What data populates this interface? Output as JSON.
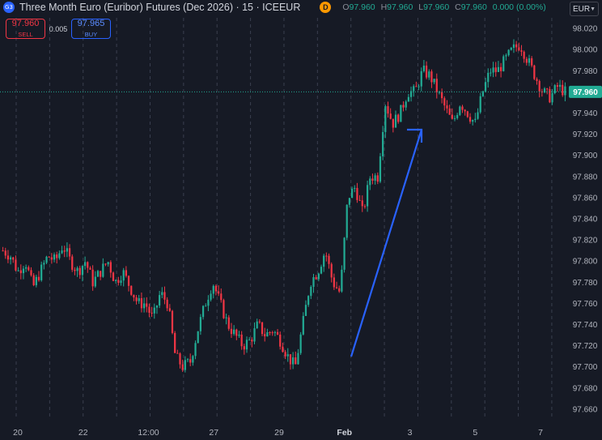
{
  "header": {
    "symbol_icon": "G3",
    "title": "Three Month Euro (Euribor) Futures (Dec 2026) · 15 · ICEEUR",
    "flag_letter": "D",
    "ohlc": {
      "o_label": "O",
      "o": "97.960",
      "h_label": "H",
      "h": "97.960",
      "l_label": "L",
      "l": "97.960",
      "c_label": "C",
      "c": "97.960",
      "change": "0.000 (0.00%)"
    }
  },
  "trade": {
    "sell_price": "97.960",
    "sell_label": "SELL",
    "spread": "0.005",
    "buy_price": "97.965",
    "buy_label": "BUY"
  },
  "currency": "EUR",
  "colors": {
    "background": "#161a25",
    "up": "#22ab94",
    "down": "#f23645",
    "arrow": "#2962ff",
    "price_line": "#22ab94",
    "grid": "#3a3f4f"
  },
  "chart_data": {
    "type": "candlestick",
    "ylim": [
      97.65,
      98.03
    ],
    "y_ticks": [
      "98.020",
      "98.000",
      "97.980",
      "97.960",
      "97.940",
      "97.920",
      "97.900",
      "97.880",
      "97.860",
      "97.840",
      "97.820",
      "97.800",
      "97.780",
      "97.760",
      "97.740",
      "97.720",
      "97.700",
      "97.680",
      "97.660"
    ],
    "x_ticks": [
      "20",
      "22",
      "12:00",
      "27",
      "29",
      "Feb",
      "3",
      "5",
      "7"
    ],
    "session_dividers": 17,
    "last_price": "97.960",
    "price_path": [
      97.81,
      97.805,
      97.79,
      97.8,
      97.775,
      97.79,
      97.805,
      97.8,
      97.815,
      97.8,
      97.79,
      97.8,
      97.78,
      97.79,
      97.8,
      97.78,
      97.79,
      97.775,
      97.76,
      97.76,
      97.745,
      97.77,
      97.76,
      97.71,
      97.7,
      97.705,
      97.735,
      97.76,
      97.78,
      97.76,
      97.74,
      97.73,
      97.72,
      97.725,
      97.74,
      97.73,
      97.735,
      97.725,
      97.71,
      97.7,
      97.74,
      97.78,
      97.79,
      97.81,
      97.78,
      97.77,
      97.86,
      97.87,
      97.845,
      97.88,
      97.88,
      97.95,
      97.93,
      97.94,
      97.96,
      97.96,
      97.98,
      97.975,
      97.96,
      97.945,
      97.93,
      97.95,
      97.94,
      97.93,
      97.96,
      97.98,
      97.98,
      97.99,
      98.0,
      98.005,
      97.99,
      97.975,
      97.96,
      97.955,
      97.965,
      97.96
    ],
    "annotation": {
      "type": "arrow",
      "from": [
        "Feb",
        97.715
      ],
      "to": [
        "3",
        97.93
      ]
    }
  }
}
